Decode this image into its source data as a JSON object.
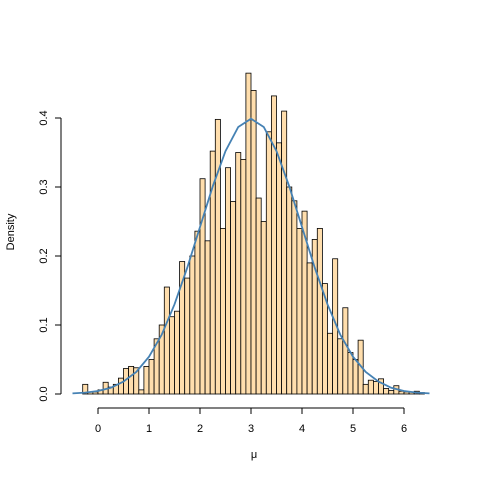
{
  "chart_data": {
    "type": "histogram",
    "xlabel": "μ",
    "ylabel": "Density",
    "bins": [
      -0.5,
      -0.4,
      -0.3,
      -0.2,
      -0.1,
      0.0,
      0.1,
      0.2,
      0.3,
      0.4,
      0.5,
      0.6,
      0.7,
      0.8,
      0.9,
      1.0,
      1.1,
      1.2,
      1.3,
      1.4,
      1.5,
      1.6,
      1.7,
      1.8,
      1.9,
      2.0,
      2.1,
      2.2,
      2.3,
      2.4,
      2.5,
      2.6,
      2.7,
      2.8,
      2.9,
      3.0,
      3.1,
      3.2,
      3.3,
      3.4,
      3.5,
      3.6,
      3.7,
      3.8,
      3.9,
      4.0,
      4.1,
      4.2,
      4.3,
      4.4,
      4.5,
      4.6,
      4.7,
      4.8,
      4.9,
      5.0,
      5.1,
      5.2,
      5.3,
      5.4,
      5.5,
      5.6,
      5.7,
      5.8,
      5.9,
      6.0,
      6.1,
      6.2,
      6.3,
      6.4,
      6.5
    ],
    "values": [
      0,
      0,
      0.014,
      0.003,
      0.003,
      0.006,
      0.017,
      0.01,
      0.014,
      0.023,
      0.037,
      0.04,
      0.038,
      0.006,
      0.04,
      0.05,
      0.08,
      0.1,
      0.155,
      0.112,
      0.12,
      0.192,
      0.168,
      0.2,
      0.236,
      0.312,
      0.222,
      0.352,
      0.398,
      0.24,
      0.328,
      0.279,
      0.35,
      0.34,
      0.465,
      0.44,
      0.284,
      0.25,
      0.38,
      0.432,
      0.364,
      0.41,
      0.3,
      0.28,
      0.24,
      0.265,
      0.19,
      0.224,
      0.24,
      0.16,
      0.088,
      0.196,
      0.08,
      0.125,
      0.06,
      0.05,
      0.078,
      0.014,
      0.02,
      0.018,
      0.022,
      0.008,
      0.005,
      0.012,
      0.004,
      0.003,
      0.003,
      0.004,
      0.002,
      0
    ],
    "color": "#ffdead",
    "curve": {
      "color": "#4682b4",
      "x": [
        -0.5,
        -0.25,
        0,
        0.25,
        0.5,
        0.75,
        1,
        1.25,
        1.5,
        1.75,
        2,
        2.25,
        2.5,
        2.75,
        3,
        3.25,
        3.5,
        3.75,
        4,
        4.25,
        4.5,
        4.75,
        5,
        5.25,
        5.5,
        5.75,
        6,
        6.25,
        6.5
      ],
      "y": [
        0.0009,
        0.002,
        0.0044,
        0.009,
        0.018,
        0.032,
        0.054,
        0.086,
        0.13,
        0.183,
        0.242,
        0.301,
        0.352,
        0.387,
        0.399,
        0.387,
        0.352,
        0.301,
        0.242,
        0.183,
        0.13,
        0.086,
        0.054,
        0.032,
        0.018,
        0.009,
        0.0044,
        0.002,
        0.0009
      ]
    },
    "xlim": [
      -0.5,
      6.6
    ],
    "ylim": [
      0,
      0.48
    ],
    "xticks": [
      0,
      1,
      2,
      3,
      4,
      5,
      6
    ],
    "yticks": [
      {
        "value": 0,
        "label": "0.0"
      },
      0.1,
      0.2,
      0.3,
      0.4
    ]
  }
}
